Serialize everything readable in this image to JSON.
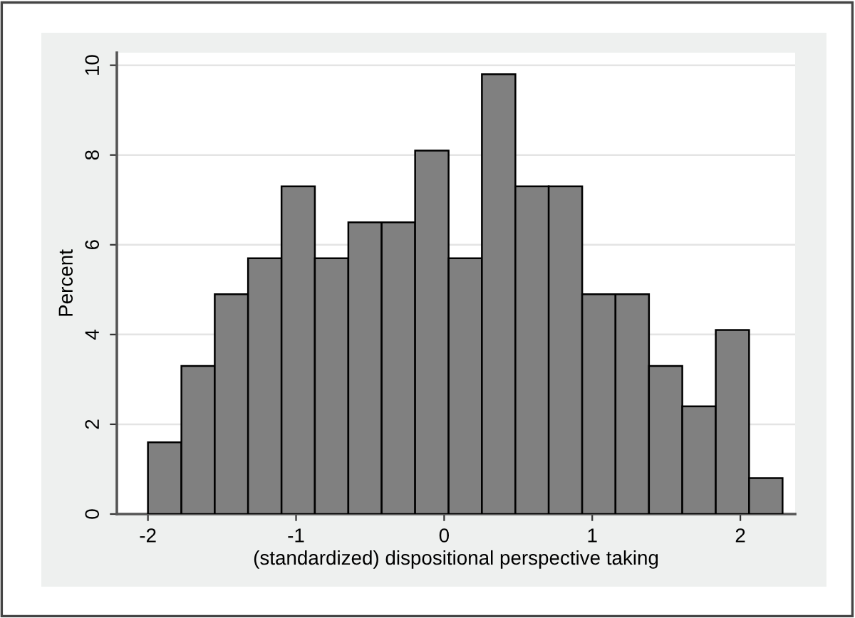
{
  "chart_data": {
    "type": "histogram",
    "xlabel": "(standardized) dispositional perspective taking",
    "ylabel": "Percent",
    "bins": [
      -2,
      -1.774,
      -1.549,
      -1.324,
      -1.098,
      -0.873,
      -0.647,
      -0.422,
      -0.196,
      0.03,
      0.255,
      0.481,
      0.706,
      0.932,
      1.157,
      1.383,
      1.608,
      1.834,
      2.059,
      2.285
    ],
    "values": [
      1.6,
      3.3,
      4.9,
      5.7,
      7.3,
      5.7,
      6.5,
      6.5,
      8.1,
      5.7,
      9.8,
      7.3,
      7.3,
      4.9,
      4.9,
      3.3,
      2.4,
      4.1,
      0.8
    ],
    "color": "#808080",
    "xlim": [
      -2.21,
      2.37
    ],
    "xticks": [
      -2,
      -1,
      0,
      1,
      2
    ],
    "ylim": [
      0,
      10.28
    ],
    "yticks": [
      0,
      2,
      4,
      6,
      8,
      10
    ],
    "grid": "y"
  }
}
